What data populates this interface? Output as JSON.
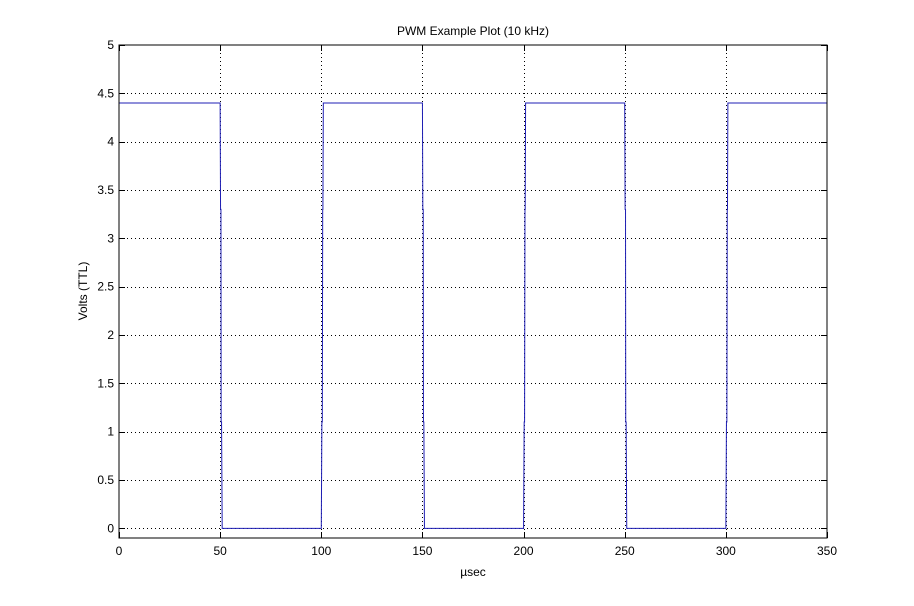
{
  "chart_data": {
    "type": "line",
    "title": "PWM Example Plot (10 kHz)",
    "xlabel": "µsec",
    "ylabel": "Volts (TTL)",
    "xlim": [
      0,
      350
    ],
    "ylim": [
      -0.1,
      5
    ],
    "xticks": [
      0,
      50,
      100,
      150,
      200,
      250,
      300,
      350
    ],
    "yticks": [
      0,
      0.5,
      1,
      1.5,
      2,
      2.5,
      3,
      3.5,
      4,
      4.5,
      5
    ],
    "xtick_labels": [
      "0",
      "50",
      "100",
      "150",
      "200",
      "250",
      "300",
      "350"
    ],
    "ytick_labels": [
      "0",
      "0.5",
      "1",
      "1.5",
      "2",
      "2.5",
      "3",
      "3.5",
      "4",
      "4.5",
      "5"
    ],
    "grid": true,
    "series": [
      {
        "color": "#1f1fb4",
        "x": [
          0,
          50,
          50.2,
          50.4,
          50.5,
          50.7,
          51,
          100,
          100.3,
          100.5,
          100.7,
          100.8,
          101,
          150,
          150.2,
          150.4,
          150.5,
          150.7,
          151,
          200,
          200.3,
          200.5,
          200.7,
          200.8,
          201,
          250,
          250.2,
          250.4,
          250.5,
          250.7,
          251,
          300,
          300.3,
          300.5,
          300.7,
          300.8,
          301,
          350
        ],
        "y": [
          4.4,
          4.4,
          3.3,
          3.3,
          1.1,
          1.1,
          0,
          0,
          1.1,
          1.1,
          3.3,
          3.3,
          4.4,
          4.4,
          3.3,
          3.3,
          1.1,
          1.1,
          0,
          0,
          1.1,
          1.1,
          3.3,
          3.3,
          4.4,
          4.4,
          3.3,
          3.3,
          1.1,
          1.1,
          0,
          0,
          1.1,
          1.1,
          3.3,
          3.3,
          4.4,
          4.4
        ]
      }
    ]
  }
}
